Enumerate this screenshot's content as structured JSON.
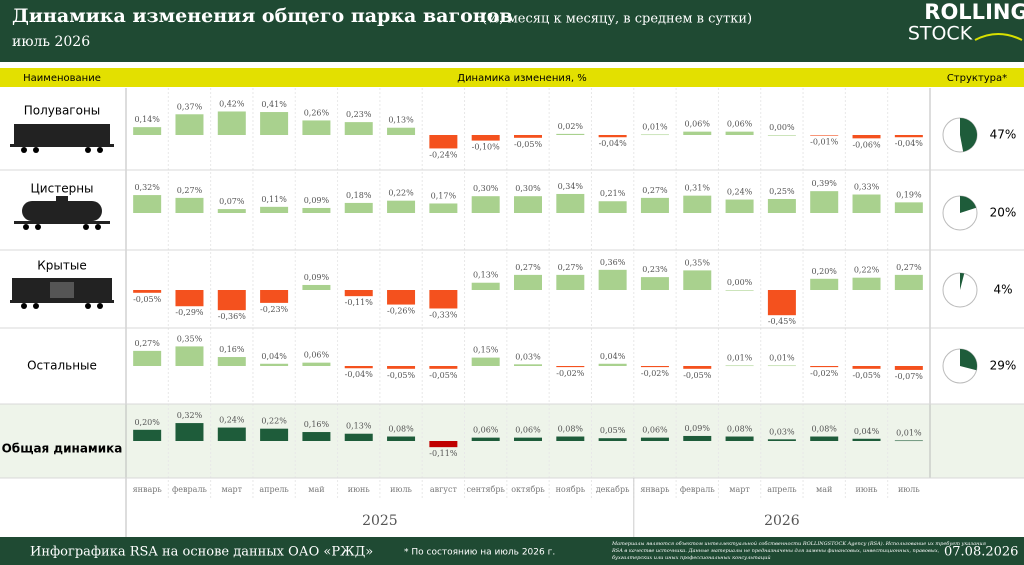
{
  "header": {
    "title": "Динамика изменения общего парка вагонов",
    "subtitle": "(%, месяц к месяцу, в среднем в сутки)",
    "period": "июль 2026",
    "logo_top": "ROLLING",
    "logo_bottom": "STOCK"
  },
  "table_header": {
    "name": "Наименование",
    "dynamics": "Динамика изменения, %",
    "structure": "Структура*"
  },
  "chart_data": {
    "type": "bar",
    "categories": [
      "январь",
      "февраль",
      "март",
      "апрель",
      "май",
      "июнь",
      "июль",
      "август",
      "сентябрь",
      "октябрь",
      "ноябрь",
      "декабрь",
      "январь",
      "февраль",
      "март",
      "апрель",
      "май",
      "июнь",
      "июль"
    ],
    "years": [
      "2025",
      "2026"
    ],
    "pie_color": "#1e5c3a",
    "series": [
      {
        "name": "Полувагоны",
        "positive_color": "#a9d18e",
        "negative_color": "#f4511e",
        "values": [
          0.14,
          0.37,
          0.42,
          0.41,
          0.26,
          0.23,
          0.13,
          -0.24,
          -0.1,
          -0.05,
          0.02,
          -0.04,
          0.01,
          0.06,
          0.06,
          0.0,
          -0.01,
          -0.06,
          -0.04
        ],
        "value_labels": [
          "0,14%",
          "0,37%",
          "0,42%",
          "0,41%",
          "0,26%",
          "0,23%",
          "0,13%",
          "-0,24%",
          "-0,10%",
          "-0,05%",
          "0,02%",
          "-0,04%",
          "0,01%",
          "0,06%",
          "0,06%",
          "0,00%",
          "-0,01%",
          "-0,06%",
          "-0,04%"
        ],
        "structure": 47,
        "structure_label": "47%"
      },
      {
        "name": "Цистерны",
        "positive_color": "#a9d18e",
        "negative_color": "#f4511e",
        "values": [
          0.32,
          0.27,
          0.07,
          0.11,
          0.09,
          0.18,
          0.22,
          0.17,
          0.3,
          0.3,
          0.34,
          0.21,
          0.27,
          0.31,
          0.24,
          0.25,
          0.39,
          0.33,
          0.19
        ],
        "value_labels": [
          "0,32%",
          "0,27%",
          "0,07%",
          "0,11%",
          "0,09%",
          "0,18%",
          "0,22%",
          "0,17%",
          "0,30%",
          "0,30%",
          "0,34%",
          "0,21%",
          "0,27%",
          "0,31%",
          "0,24%",
          "0,25%",
          "0,39%",
          "0,33%",
          "0,19%"
        ],
        "structure": 20,
        "structure_label": "20%"
      },
      {
        "name": "Крытые",
        "positive_color": "#a9d18e",
        "negative_color": "#f4511e",
        "values": [
          -0.05,
          -0.29,
          -0.36,
          -0.23,
          0.09,
          -0.11,
          -0.26,
          -0.33,
          0.13,
          0.27,
          0.27,
          0.36,
          0.23,
          0.35,
          0.0,
          -0.45,
          0.2,
          0.22,
          0.27
        ],
        "value_labels": [
          "-0,05%",
          "-0,29%",
          "-0,36%",
          "-0,23%",
          "0,09%",
          "-0,11%",
          "-0,26%",
          "-0,33%",
          "0,13%",
          "0,27%",
          "0,27%",
          "0,36%",
          "0,23%",
          "0,35%",
          "0,00%",
          "-0,45%",
          "0,20%",
          "0,22%",
          "0,27%"
        ],
        "structure": 4,
        "structure_label": "4%"
      },
      {
        "name": "Остальные",
        "positive_color": "#a9d18e",
        "negative_color": "#f4511e",
        "values": [
          0.27,
          0.35,
          0.16,
          0.04,
          0.06,
          -0.04,
          -0.05,
          -0.05,
          0.15,
          0.03,
          -0.02,
          0.04,
          -0.02,
          -0.05,
          0.01,
          0.01,
          -0.02,
          -0.05,
          -0.07
        ],
        "value_labels": [
          "0,27%",
          "0,35%",
          "0,16%",
          "0,04%",
          "0,06%",
          "-0,04%",
          "-0,05%",
          "-0,05%",
          "0,15%",
          "0,03%",
          "-0,02%",
          "0,04%",
          "-0,02%",
          "-0,05%",
          "0,01%",
          "0,01%",
          "-0,02%",
          "-0,05%",
          "-0,07%"
        ],
        "structure": 29,
        "structure_label": "29%"
      },
      {
        "name": "Общая динамика",
        "positive_color": "#1e5c3a",
        "negative_color": "#c00000",
        "values": [
          0.2,
          0.32,
          0.24,
          0.22,
          0.16,
          0.13,
          0.08,
          -0.11,
          0.06,
          0.06,
          0.08,
          0.05,
          0.06,
          0.09,
          0.08,
          0.03,
          0.08,
          0.04,
          0.01
        ],
        "value_labels": [
          "0,20%",
          "0,32%",
          "0,24%",
          "0,22%",
          "0,16%",
          "0,13%",
          "0,08%",
          "-0,11%",
          "0,06%",
          "0,06%",
          "0,08%",
          "0,05%",
          "0,06%",
          "0,09%",
          "0,08%",
          "0,03%",
          "0,08%",
          "0,04%",
          "0,01%"
        ]
      }
    ]
  },
  "footer": {
    "source": "Инфографика RSA на основе данных ОАО «РЖД»",
    "note": "* По состоянию на июль 2026 г.",
    "disclaimer": "Материалы являются объектом интеллектуальной собственности ROLLINGSTOCK Agency (RSA). Использование их требует указания RSA в качестве источника. Данные материалы не предназначены для замены финансовых, инвестиционных, правовых, бухгалтерских или иных профессиональных консультаций",
    "date": "07.08.2026"
  }
}
